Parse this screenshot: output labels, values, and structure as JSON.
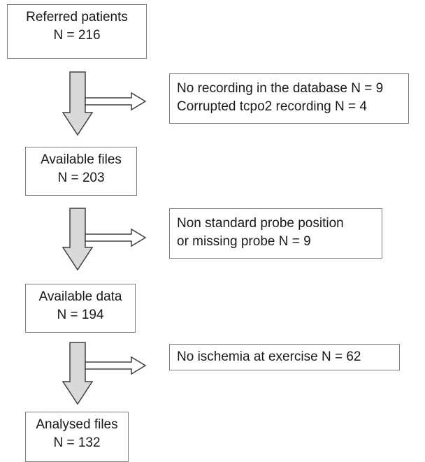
{
  "nodes": [
    {
      "id": "referred",
      "lines": [
        "Referred patients",
        "N = 216"
      ]
    },
    {
      "id": "available-files",
      "lines": [
        "Available files",
        "N = 203"
      ]
    },
    {
      "id": "available-data",
      "lines": [
        "Available data",
        "N = 194"
      ]
    },
    {
      "id": "analysed-files",
      "lines": [
        "Analysed files",
        "N = 132"
      ]
    }
  ],
  "exclusions": [
    {
      "id": "exclusion-1",
      "lines": [
        "No recording in the database N = 9",
        "Corrupted tcpo2 recording  N = 4"
      ]
    },
    {
      "id": "exclusion-2",
      "lines": [
        "Non standard probe position",
        "or missing probe N = 9"
      ]
    },
    {
      "id": "exclusion-3",
      "lines": [
        "No ischemia at exercise  N = 62"
      ]
    }
  ],
  "colors": {
    "arrow_fill": "#d9d9d9",
    "arrow_stroke": "#404040",
    "box_border": "#7f7f7f"
  }
}
